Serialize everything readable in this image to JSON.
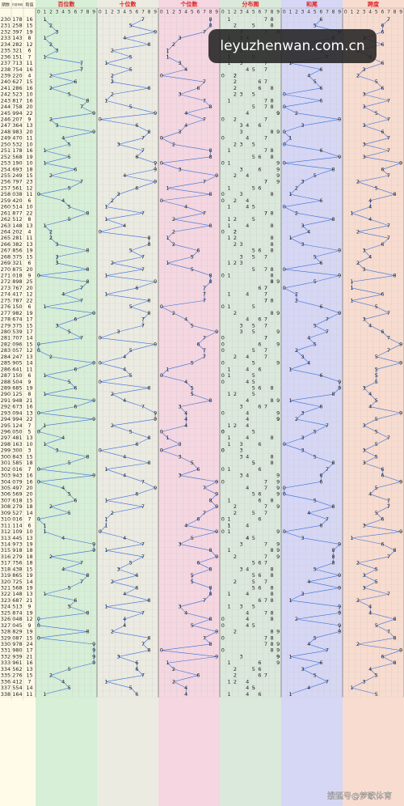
{
  "header": {
    "period": "期数",
    "number": "开奖号码",
    "sum": "和值",
    "sections": [
      "百位数",
      "十位数",
      "个位数",
      "分布图",
      "和尾",
      "跨度"
    ],
    "digits": [
      "0",
      "1",
      "2",
      "3",
      "4",
      "5",
      "6",
      "7",
      "8",
      "9"
    ]
  },
  "rows": [
    [
      "230",
      "178",
      "16",
      "7"
    ],
    [
      "231",
      "258",
      "15",
      "6"
    ],
    [
      "232",
      "397",
      "19",
      "6"
    ],
    [
      "233",
      "143",
      "8",
      "3"
    ],
    [
      "234",
      "282",
      "12",
      "6"
    ],
    [
      "235",
      "321",
      "6",
      "2"
    ],
    [
      "236",
      "151",
      "7",
      "4"
    ],
    [
      "237",
      "713",
      "11",
      "6"
    ],
    [
      "238",
      "754",
      "16",
      "3"
    ],
    [
      "239",
      "220",
      "4",
      "2"
    ],
    [
      "240",
      "627",
      "15",
      "5"
    ],
    [
      "241",
      "286",
      "16",
      "6"
    ],
    [
      "242",
      "523",
      "10",
      "3"
    ],
    [
      "243",
      "817",
      "16",
      "7"
    ],
    [
      "244",
      "758",
      "20",
      "3"
    ],
    [
      "245",
      "994",
      "22",
      "5"
    ],
    [
      "246",
      "207",
      "9",
      "7"
    ],
    [
      "247",
      "364",
      "13",
      "3"
    ],
    [
      "248",
      "983",
      "20",
      "6"
    ],
    [
      "249",
      "470",
      "11",
      "7"
    ],
    [
      "250",
      "532",
      "10",
      "3"
    ],
    [
      "251",
      "178",
      "16",
      "7"
    ],
    [
      "252",
      "568",
      "19",
      "3"
    ],
    [
      "253",
      "190",
      "10",
      "9"
    ],
    [
      "254",
      "693",
      "18",
      "6"
    ],
    [
      "255",
      "249",
      "15",
      "7"
    ],
    [
      "256",
      "797",
      "23",
      "2"
    ],
    [
      "257",
      "561",
      "12",
      "5"
    ],
    [
      "258",
      "038",
      "11",
      "8"
    ],
    [
      "259",
      "420",
      "6",
      "4"
    ],
    [
      "260",
      "514",
      "10",
      "4"
    ],
    [
      "261",
      "877",
      "22",
      "1"
    ],
    [
      "262",
      "512",
      "8",
      "4"
    ],
    [
      "263",
      "148",
      "13",
      "7"
    ],
    [
      "264",
      "202",
      "4",
      "2"
    ],
    [
      "265",
      "281",
      "11",
      "7"
    ],
    [
      "266",
      "382",
      "13",
      "6"
    ],
    [
      "267",
      "856",
      "19",
      "3"
    ],
    [
      "268",
      "375",
      "15",
      "4"
    ],
    [
      "269",
      "321",
      "6",
      "2"
    ],
    [
      "270",
      "875",
      "20",
      "3"
    ],
    [
      "271",
      "018",
      "9",
      "8"
    ],
    [
      "272",
      "898",
      "25",
      "1"
    ],
    [
      "273",
      "767",
      "20",
      "1"
    ],
    [
      "274",
      "417",
      "12",
      "6"
    ],
    [
      "275",
      "787",
      "22",
      "1"
    ],
    [
      "276",
      "150",
      "6",
      "5"
    ],
    [
      "277",
      "982",
      "19",
      "7"
    ],
    [
      "278",
      "674",
      "17",
      "3"
    ],
    [
      "279",
      "375",
      "15",
      "4"
    ],
    [
      "280",
      "539",
      "17",
      "6"
    ],
    [
      "281",
      "707",
      "14",
      "7"
    ],
    [
      "282",
      "096",
      "15",
      "9"
    ],
    [
      "283",
      "057",
      "12",
      "7"
    ],
    [
      "284",
      "247",
      "13",
      "5"
    ],
    [
      "285",
      "905",
      "14",
      "9"
    ],
    [
      "286",
      "641",
      "11",
      "5"
    ],
    [
      "287",
      "150",
      "6",
      "5"
    ],
    [
      "288",
      "504",
      "9",
      "5"
    ],
    [
      "289",
      "685",
      "19",
      "3"
    ],
    [
      "290",
      "125",
      "8",
      "4"
    ],
    [
      "291",
      "948",
      "21",
      "5"
    ],
    [
      "292",
      "673",
      "16",
      "4"
    ],
    [
      "293",
      "094",
      "13",
      "9"
    ],
    [
      "294",
      "994",
      "22",
      "5"
    ],
    [
      "295",
      "124",
      "7",
      "3"
    ],
    [
      "296",
      "050",
      "5",
      "5"
    ],
    [
      "297",
      "481",
      "13",
      "7"
    ],
    [
      "298",
      "163",
      "10",
      "5"
    ],
    [
      "299",
      "300",
      "3",
      "3"
    ],
    [
      "300",
      "843",
      "15",
      "5"
    ],
    [
      "301",
      "585",
      "18",
      "3"
    ],
    [
      "302",
      "016",
      "7",
      "6"
    ],
    [
      "303",
      "943",
      "16",
      "6"
    ],
    [
      "304",
      "079",
      "16",
      "9"
    ],
    [
      "305",
      "497",
      "20",
      "5"
    ],
    [
      "306",
      "569",
      "20",
      "4"
    ],
    [
      "307",
      "618",
      "15",
      "7"
    ],
    [
      "308",
      "279",
      "18",
      "7"
    ],
    [
      "309",
      "527",
      "14",
      "5"
    ],
    [
      "310",
      "016",
      "7",
      "6"
    ],
    [
      "311",
      "114",
      "6",
      "3"
    ],
    [
      "312",
      "109",
      "10",
      "9"
    ],
    [
      "313",
      "445",
      "13",
      "1"
    ],
    [
      "314",
      "973",
      "19",
      "6"
    ],
    [
      "315",
      "918",
      "18",
      "8"
    ],
    [
      "316",
      "279",
      "18",
      "7"
    ],
    [
      "317",
      "756",
      "18",
      "2"
    ],
    [
      "318",
      "438",
      "15",
      "5"
    ],
    [
      "319",
      "865",
      "19",
      "3"
    ],
    [
      "320",
      "725",
      "14",
      "5"
    ],
    [
      "321",
      "568",
      "19",
      "3"
    ],
    [
      "322",
      "148",
      "13",
      "7"
    ],
    [
      "323",
      "687",
      "21",
      "2"
    ],
    [
      "324",
      "513",
      "9",
      "4"
    ],
    [
      "325",
      "874",
      "19",
      "4"
    ],
    [
      "326",
      "048",
      "12",
      "8"
    ],
    [
      "327",
      "045",
      "9",
      "5"
    ],
    [
      "328",
      "829",
      "19",
      "7"
    ],
    [
      "329",
      "087",
      "15",
      "8"
    ],
    [
      "330",
      "978",
      "24",
      "2"
    ],
    [
      "331",
      "980",
      "17",
      "9"
    ],
    [
      "332",
      "939",
      "21",
      "6"
    ],
    [
      "333",
      "961",
      "16",
      "8"
    ],
    [
      "334",
      "562",
      "13",
      "4"
    ],
    [
      "335",
      "276",
      "15",
      "5"
    ],
    [
      "336",
      "412",
      "7",
      "3"
    ],
    [
      "337",
      "554",
      "14",
      "1"
    ],
    [
      "338",
      "164",
      "11",
      "5"
    ]
  ],
  "watermark": "leyuzhenwan.com.cn",
  "footer": "搜狐号@梦歌体育"
}
